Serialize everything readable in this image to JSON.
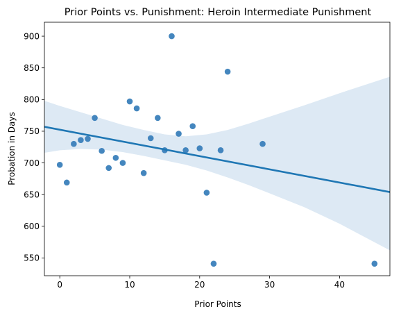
{
  "chart_data": {
    "type": "scatter",
    "title": "Prior Points vs. Punishment: Heroin Intermediate Punishment",
    "xlabel": "Prior Points",
    "ylabel": "Probation in Days",
    "xlim": [
      -2.2,
      47.2
    ],
    "ylim": [
      522,
      922
    ],
    "xticks": [
      0,
      10,
      20,
      30,
      40
    ],
    "yticks": [
      550,
      600,
      650,
      700,
      750,
      800,
      850,
      900
    ],
    "grid": false,
    "colors": {
      "points": "#3a80bb",
      "regression_line": "#1f77b4",
      "confidence_band": "#dde9f4"
    },
    "points": [
      {
        "x": 0,
        "y": 697
      },
      {
        "x": 1,
        "y": 669
      },
      {
        "x": 2,
        "y": 730
      },
      {
        "x": 3,
        "y": 736
      },
      {
        "x": 4,
        "y": 738
      },
      {
        "x": 5,
        "y": 771
      },
      {
        "x": 6,
        "y": 719
      },
      {
        "x": 7,
        "y": 692
      },
      {
        "x": 8,
        "y": 708
      },
      {
        "x": 9,
        "y": 700
      },
      {
        "x": 10,
        "y": 797
      },
      {
        "x": 11,
        "y": 786
      },
      {
        "x": 12,
        "y": 684
      },
      {
        "x": 13,
        "y": 739
      },
      {
        "x": 14,
        "y": 771
      },
      {
        "x": 15,
        "y": 720
      },
      {
        "x": 16,
        "y": 900
      },
      {
        "x": 17,
        "y": 746
      },
      {
        "x": 18,
        "y": 720
      },
      {
        "x": 19,
        "y": 758
      },
      {
        "x": 20,
        "y": 723
      },
      {
        "x": 21,
        "y": 653
      },
      {
        "x": 22,
        "y": 541
      },
      {
        "x": 23,
        "y": 720
      },
      {
        "x": 24,
        "y": 844
      },
      {
        "x": 29,
        "y": 730
      },
      {
        "x": 45,
        "y": 541
      }
    ],
    "regression": {
      "start": {
        "x": -2.2,
        "y": 757
      },
      "end": {
        "x": 47.2,
        "y": 654
      }
    },
    "confidence_band": {
      "upper": [
        {
          "x": -2.2,
          "y": 798
        },
        {
          "x": 0,
          "y": 790
        },
        {
          "x": 3,
          "y": 780
        },
        {
          "x": 6,
          "y": 770
        },
        {
          "x": 9,
          "y": 760
        },
        {
          "x": 12,
          "y": 752
        },
        {
          "x": 15,
          "y": 745
        },
        {
          "x": 18,
          "y": 742
        },
        {
          "x": 21,
          "y": 745
        },
        {
          "x": 24,
          "y": 752
        },
        {
          "x": 27,
          "y": 762
        },
        {
          "x": 30,
          "y": 773
        },
        {
          "x": 35,
          "y": 791
        },
        {
          "x": 40,
          "y": 810
        },
        {
          "x": 47.2,
          "y": 836
        }
      ],
      "lower": [
        {
          "x": -2.2,
          "y": 716
        },
        {
          "x": 0,
          "y": 720
        },
        {
          "x": 3,
          "y": 722
        },
        {
          "x": 6,
          "y": 721
        },
        {
          "x": 9,
          "y": 717
        },
        {
          "x": 12,
          "y": 711
        },
        {
          "x": 15,
          "y": 704
        },
        {
          "x": 18,
          "y": 697
        },
        {
          "x": 21,
          "y": 688
        },
        {
          "x": 24,
          "y": 677
        },
        {
          "x": 27,
          "y": 665
        },
        {
          "x": 30,
          "y": 652
        },
        {
          "x": 35,
          "y": 630
        },
        {
          "x": 40,
          "y": 604
        },
        {
          "x": 47.2,
          "y": 562
        }
      ]
    }
  }
}
